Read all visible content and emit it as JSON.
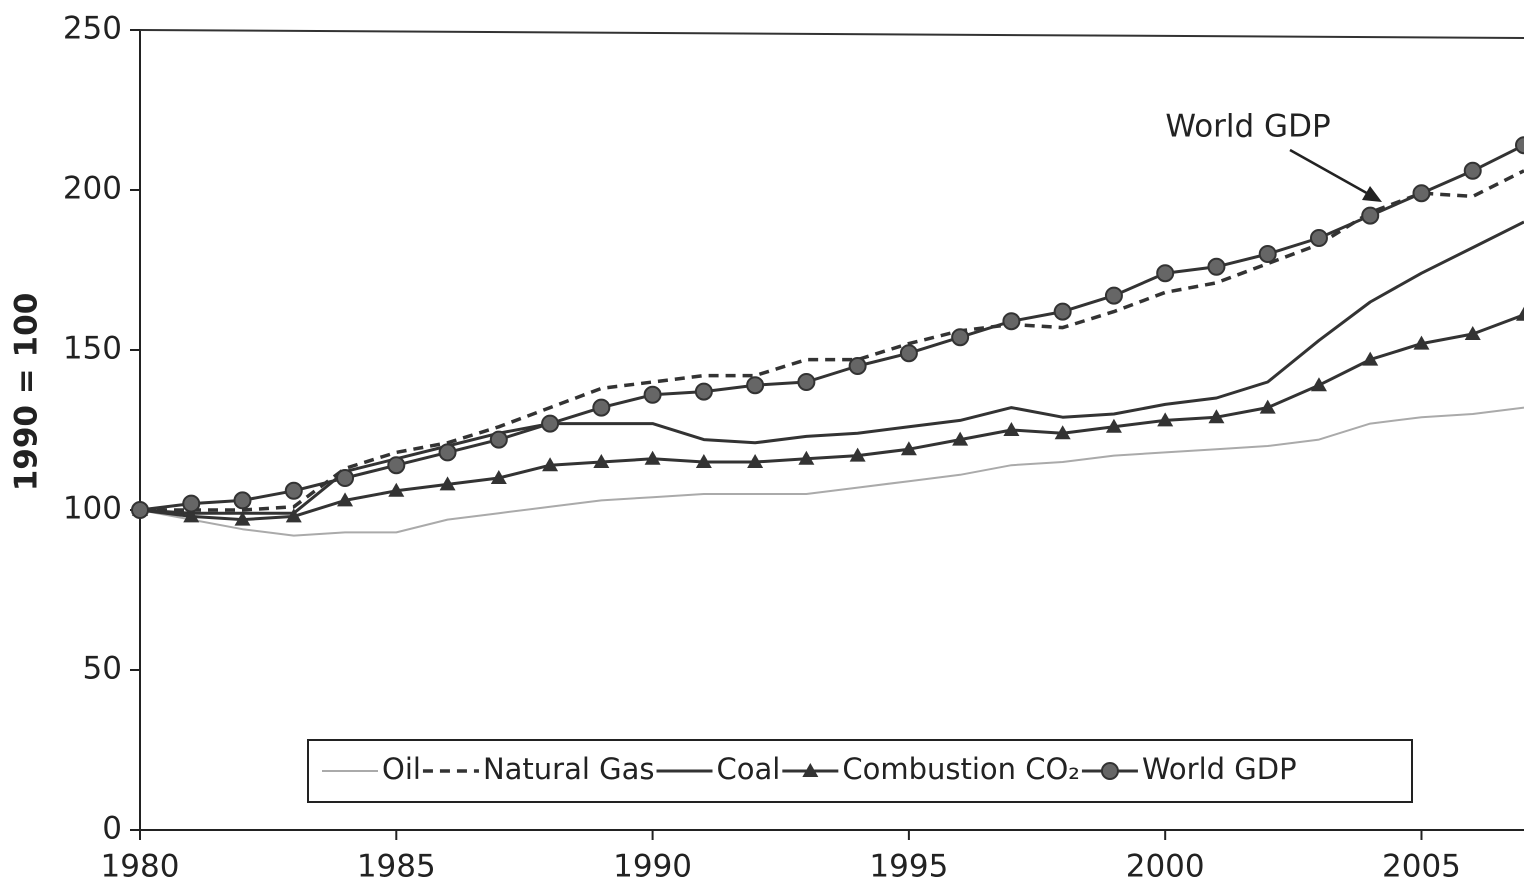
{
  "chart_data": {
    "type": "line",
    "ylabel": "1990 = 100",
    "annotation": "World GDP",
    "x": [
      1980,
      1981,
      1982,
      1983,
      1984,
      1985,
      1986,
      1987,
      1988,
      1989,
      1990,
      1991,
      1992,
      1993,
      1994,
      1995,
      1996,
      1997,
      1998,
      1999,
      2000,
      2001,
      2002,
      2003,
      2004,
      2005,
      2006,
      2007
    ],
    "xlim": [
      1980,
      2007
    ],
    "xticks": [
      1980,
      1985,
      1990,
      1995,
      2000,
      2005
    ],
    "ylim": [
      0,
      250
    ],
    "yticks": [
      0,
      50,
      100,
      150,
      200,
      250
    ],
    "grid": false,
    "legend": "bottom",
    "series": [
      {
        "name": "Oil",
        "color": "#aaaaaa",
        "style": "solid",
        "marker": "none",
        "values": [
          100,
          97,
          94,
          92,
          93,
          93,
          97,
          99,
          101,
          103,
          104,
          105,
          105,
          105,
          107,
          109,
          111,
          114,
          115,
          117,
          118,
          119,
          120,
          122,
          127,
          129,
          130,
          132
        ]
      },
      {
        "name": "Natural Gas",
        "color": "#333333",
        "style": "dashed",
        "marker": "none",
        "values": [
          100,
          100,
          100,
          101,
          113,
          118,
          121,
          126,
          132,
          138,
          140,
          142,
          142,
          147,
          147,
          152,
          156,
          158,
          157,
          162,
          168,
          171,
          177,
          183,
          193,
          199,
          198,
          206
        ]
      },
      {
        "name": "Coal",
        "color": "#333333",
        "style": "solid",
        "marker": "none",
        "values": [
          100,
          99,
          99,
          99,
          112,
          116,
          120,
          124,
          127,
          127,
          127,
          122,
          121,
          123,
          124,
          126,
          128,
          132,
          129,
          130,
          133,
          135,
          140,
          153,
          165,
          174,
          182,
          190
        ]
      },
      {
        "name": "Combustion CO₂",
        "color": "#333333",
        "style": "solid",
        "marker": "triangle",
        "values": [
          100,
          98,
          97,
          98,
          103,
          106,
          108,
          110,
          114,
          115,
          116,
          115,
          115,
          116,
          117,
          119,
          122,
          125,
          124,
          126,
          128,
          129,
          132,
          139,
          147,
          152,
          155,
          161
        ]
      },
      {
        "name": "World GDP",
        "color": "#333333",
        "style": "solid",
        "marker": "circle",
        "values": [
          100,
          102,
          103,
          106,
          110,
          114,
          118,
          122,
          127,
          132,
          136,
          137,
          139,
          140,
          145,
          149,
          154,
          159,
          162,
          167,
          174,
          176,
          180,
          185,
          192,
          199,
          206,
          214
        ]
      }
    ]
  }
}
